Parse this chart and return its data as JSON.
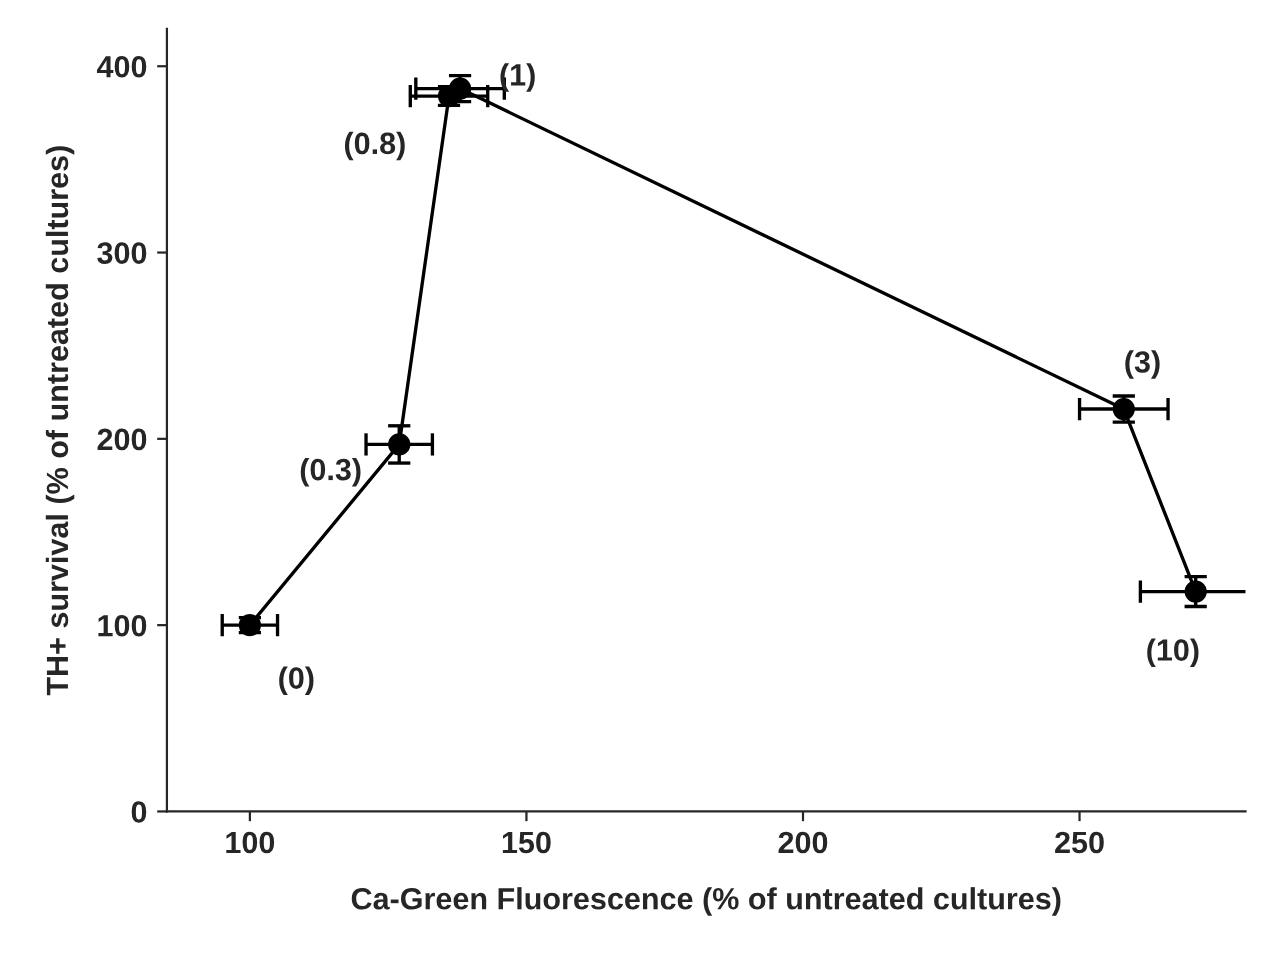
{
  "chart_data": {
    "type": "line",
    "xlabel": "Ca-Green Fluorescence (% of untreated cultures)",
    "ylabel": "TH+ survival (% of untreated cultures)",
    "x": [
      100,
      127,
      136,
      138,
      258,
      271
    ],
    "values": [
      100,
      197,
      384,
      388,
      216,
      118
    ],
    "errors": [
      4,
      10,
      5,
      7,
      7,
      8
    ],
    "xerrors": [
      5,
      6,
      7,
      8,
      8,
      10
    ],
    "color": "#000000",
    "marker": "circle",
    "line_style": "solid",
    "xlim": [
      85,
      280
    ],
    "ylim": [
      0,
      420
    ],
    "xticks": [
      100,
      150,
      200,
      250
    ],
    "yticks": [
      0,
      100,
      200,
      300,
      400
    ],
    "annotations": [
      {
        "text": "(0)",
        "x": 100,
        "y": 100
      },
      {
        "text": "(0.3)",
        "x": 127,
        "y": 197
      },
      {
        "text": "(0.8)",
        "x": 136,
        "y": 384
      },
      {
        "text": "(1)",
        "x": 138,
        "y": 388
      },
      {
        "text": "(3)",
        "x": 258,
        "y": 216
      },
      {
        "text": "(10)",
        "x": 271,
        "y": 118
      }
    ]
  }
}
